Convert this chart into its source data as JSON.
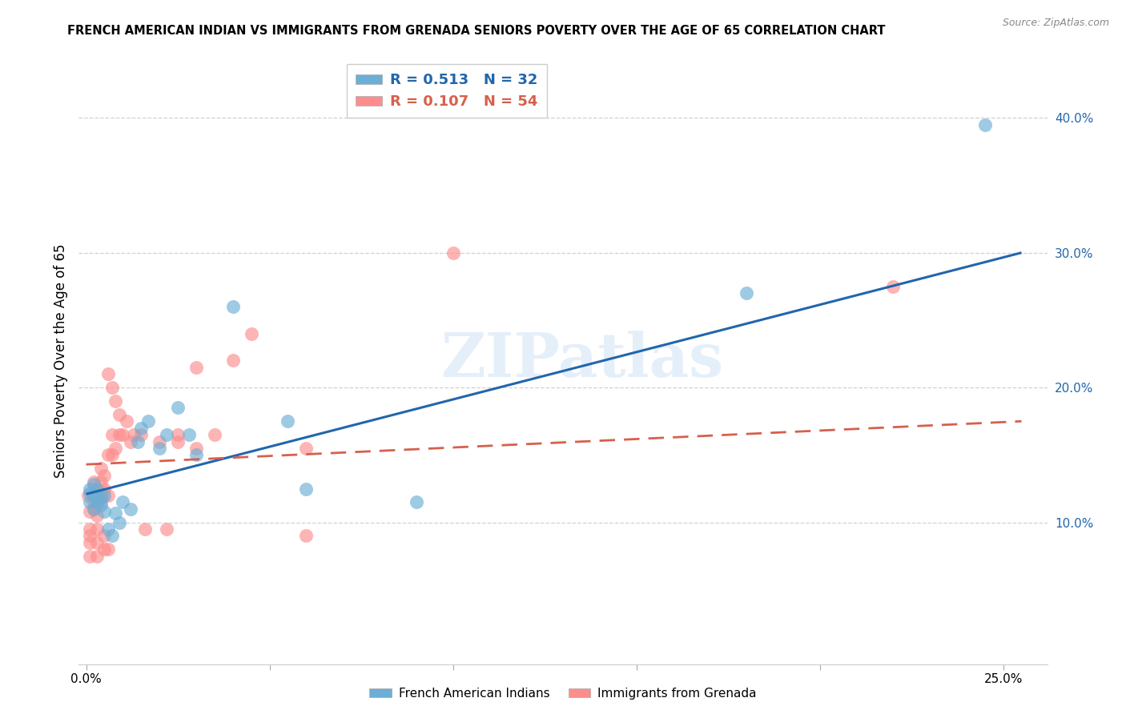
{
  "title": "FRENCH AMERICAN INDIAN VS IMMIGRANTS FROM GRENADA SENIORS POVERTY OVER THE AGE OF 65 CORRELATION CHART",
  "source": "Source: ZipAtlas.com",
  "ylabel": "Seniors Poverty Over the Age of 65",
  "x_ticks": [
    0.0,
    0.05,
    0.1,
    0.15,
    0.2,
    0.25
  ],
  "y_ticks_right": [
    0.1,
    0.2,
    0.3,
    0.4
  ],
  "y_tick_labels_right": [
    "10.0%",
    "20.0%",
    "30.0%",
    "40.0%"
  ],
  "xlim": [
    -0.002,
    0.262
  ],
  "ylim": [
    -0.005,
    0.445
  ],
  "blue_R": 0.513,
  "blue_N": 32,
  "pink_R": 0.107,
  "pink_N": 54,
  "blue_color": "#6baed6",
  "pink_color": "#fc8d8d",
  "blue_line_color": "#2166ac",
  "pink_line_color": "#d6604d",
  "watermark": "ZIPatlas",
  "legend_label_blue": "French American Indians",
  "legend_label_pink": "Immigrants from Grenada",
  "blue_line_x0": 0.0,
  "blue_line_y0": 0.121,
  "blue_line_x1": 0.255,
  "blue_line_y1": 0.3,
  "pink_line_x0": 0.0,
  "pink_line_y0": 0.143,
  "pink_line_x1": 0.255,
  "pink_line_y1": 0.175,
  "blue_scatter_x": [
    0.001,
    0.001,
    0.001,
    0.002,
    0.002,
    0.002,
    0.003,
    0.003,
    0.004,
    0.004,
    0.005,
    0.005,
    0.006,
    0.007,
    0.008,
    0.009,
    0.01,
    0.012,
    0.014,
    0.015,
    0.017,
    0.02,
    0.022,
    0.025,
    0.028,
    0.03,
    0.04,
    0.055,
    0.06,
    0.09,
    0.18,
    0.245
  ],
  "blue_scatter_y": [
    0.125,
    0.115,
    0.122,
    0.12,
    0.11,
    0.128,
    0.116,
    0.124,
    0.118,
    0.113,
    0.12,
    0.108,
    0.095,
    0.09,
    0.107,
    0.1,
    0.115,
    0.11,
    0.16,
    0.17,
    0.175,
    0.155,
    0.165,
    0.185,
    0.165,
    0.15,
    0.26,
    0.175,
    0.125,
    0.115,
    0.27,
    0.395
  ],
  "pink_scatter_x": [
    0.0005,
    0.001,
    0.001,
    0.001,
    0.001,
    0.001,
    0.002,
    0.002,
    0.002,
    0.002,
    0.003,
    0.003,
    0.003,
    0.003,
    0.003,
    0.003,
    0.004,
    0.004,
    0.004,
    0.004,
    0.005,
    0.005,
    0.005,
    0.005,
    0.006,
    0.006,
    0.006,
    0.006,
    0.007,
    0.007,
    0.007,
    0.008,
    0.008,
    0.009,
    0.009,
    0.01,
    0.011,
    0.012,
    0.013,
    0.015,
    0.016,
    0.02,
    0.022,
    0.025,
    0.025,
    0.03,
    0.03,
    0.035,
    0.04,
    0.045,
    0.06,
    0.06,
    0.1,
    0.22
  ],
  "pink_scatter_y": [
    0.12,
    0.075,
    0.085,
    0.09,
    0.095,
    0.108,
    0.115,
    0.11,
    0.12,
    0.13,
    0.075,
    0.085,
    0.095,
    0.105,
    0.115,
    0.125,
    0.115,
    0.12,
    0.13,
    0.14,
    0.08,
    0.09,
    0.125,
    0.135,
    0.08,
    0.12,
    0.15,
    0.21,
    0.15,
    0.165,
    0.2,
    0.155,
    0.19,
    0.165,
    0.18,
    0.165,
    0.175,
    0.16,
    0.165,
    0.165,
    0.095,
    0.16,
    0.095,
    0.16,
    0.165,
    0.215,
    0.155,
    0.165,
    0.22,
    0.24,
    0.09,
    0.155,
    0.3,
    0.275
  ]
}
